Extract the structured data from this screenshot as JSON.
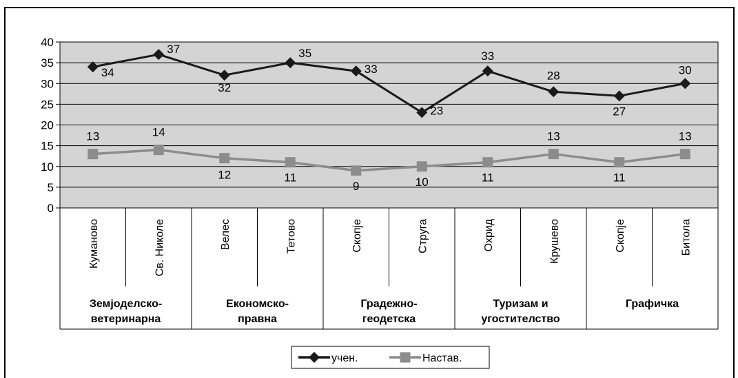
{
  "chart_data": {
    "type": "line",
    "title": "",
    "xlabel": "",
    "ylabel": "",
    "ylim": [
      0,
      40
    ],
    "yticks": [
      "0",
      "5",
      "10",
      "15",
      "20",
      "25",
      "30",
      "35",
      "40"
    ],
    "grid": true,
    "legend_position": "bottom",
    "categories": [
      "Куманово",
      "Св. Николе",
      "Велес",
      "Тетово",
      "Скопје",
      "Струга",
      "Охрид",
      "Крушево",
      "Скопје",
      "Битола"
    ],
    "groups": [
      {
        "label_line1": "Земјоделско-",
        "label_line2": "ветеринарна",
        "span": 2
      },
      {
        "label_line1": "Економско-",
        "label_line2": "правна",
        "span": 2
      },
      {
        "label_line1": "Градежно-",
        "label_line2": "геодетска",
        "span": 2
      },
      {
        "label_line1": "Туризам и",
        "label_line2": "угостителство",
        "span": 2
      },
      {
        "label_line1": "Графичка",
        "label_line2": "",
        "span": 2
      }
    ],
    "series": [
      {
        "name": "учен.",
        "color": "#1a1a1a",
        "marker": "diamond",
        "values": [
          34,
          37,
          32,
          35,
          33,
          23,
          33,
          28,
          27,
          30
        ]
      },
      {
        "name": "Настав.",
        "color": "#8c8c8c",
        "marker": "square",
        "values": [
          13,
          14,
          12,
          11,
          9,
          10,
          11,
          13,
          11,
          13
        ]
      }
    ],
    "plot_background": "#d4d4d4"
  }
}
